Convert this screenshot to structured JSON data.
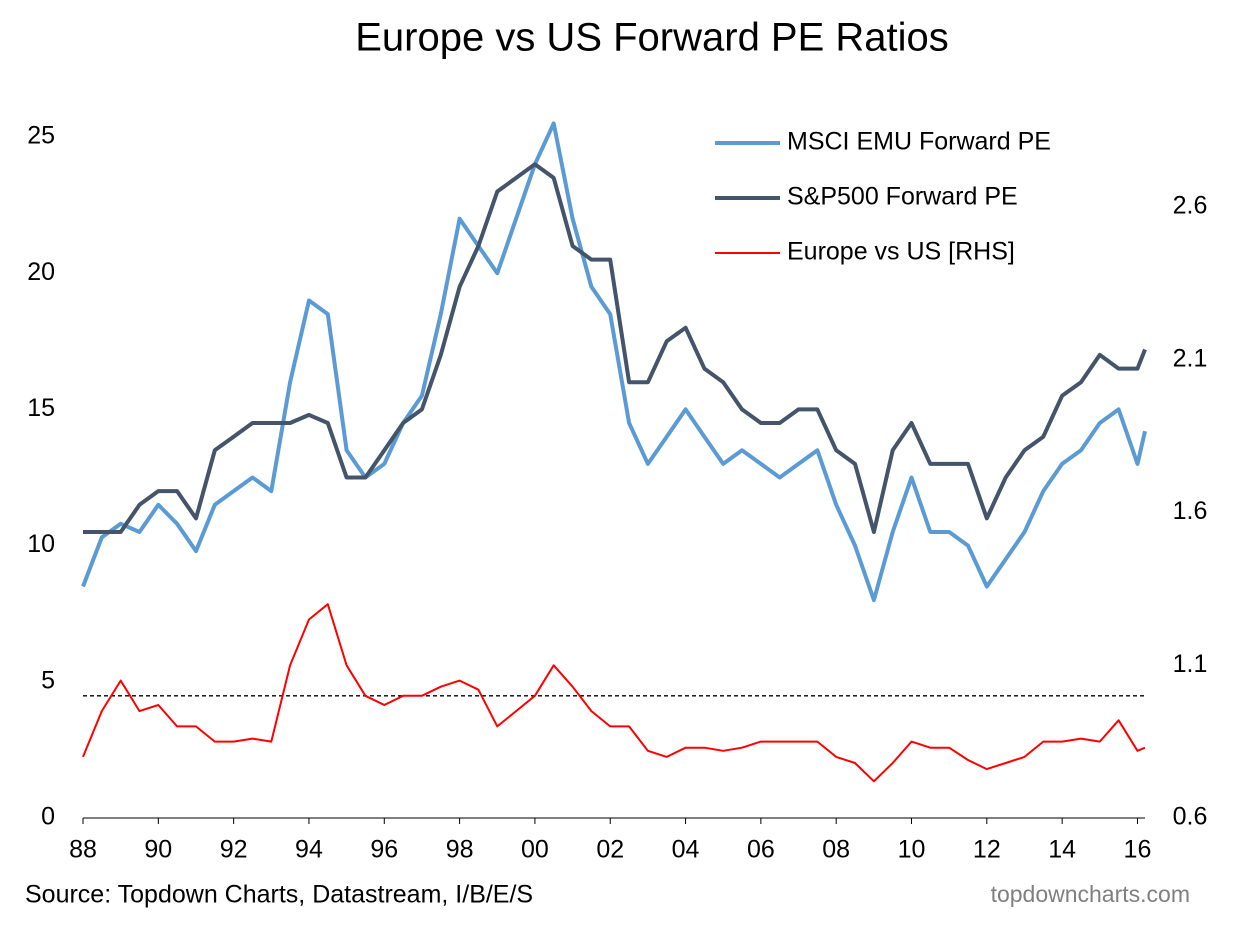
{
  "chart_data": {
    "type": "line",
    "title": "Europe vs US Forward PE Ratios",
    "source": "Source: Topdown Charts, Datastream, I/B/E/S",
    "watermark": "topdowncharts.com",
    "x": [
      1988,
      1988.5,
      1989,
      1989.5,
      1990,
      1990.5,
      1991,
      1991.5,
      1992,
      1992.5,
      1993,
      1993.5,
      1994,
      1994.5,
      1995,
      1995.5,
      1996,
      1996.5,
      1997,
      1997.5,
      1998,
      1998.5,
      1999,
      1999.5,
      2000,
      2000.5,
      2001,
      2001.5,
      2002,
      2002.5,
      2003,
      2003.5,
      2004,
      2004.5,
      2005,
      2005.5,
      2006,
      2006.5,
      2007,
      2007.5,
      2008,
      2008.5,
      2009,
      2009.5,
      2010,
      2010.5,
      2011,
      2011.5,
      2012,
      2012.5,
      2013,
      2013.5,
      2014,
      2014.5,
      2015,
      2015.5,
      2016,
      2016.2
    ],
    "xlim": [
      1988,
      2016.2
    ],
    "xticks": [
      {
        "value": 1988,
        "label": "88"
      },
      {
        "value": 1990,
        "label": "90"
      },
      {
        "value": 1992,
        "label": "92"
      },
      {
        "value": 1994,
        "label": "94"
      },
      {
        "value": 1996,
        "label": "96"
      },
      {
        "value": 1998,
        "label": "98"
      },
      {
        "value": 2000,
        "label": "00"
      },
      {
        "value": 2002,
        "label": "02"
      },
      {
        "value": 2004,
        "label": "04"
      },
      {
        "value": 2006,
        "label": "06"
      },
      {
        "value": 2008,
        "label": "08"
      },
      {
        "value": 2010,
        "label": "10"
      },
      {
        "value": 2012,
        "label": "12"
      },
      {
        "value": 2014,
        "label": "14"
      },
      {
        "value": 2016,
        "label": "16"
      }
    ],
    "ylim": [
      0,
      26.8
    ],
    "yticks": [
      0,
      5,
      10,
      15,
      20,
      25
    ],
    "y2lim": [
      0.6,
      2.99
    ],
    "y2ticks": [
      0.6,
      1.1,
      1.6,
      2.1,
      2.6
    ],
    "reference_line": {
      "value": 1.0,
      "axis": "y2",
      "color": "#000000"
    },
    "legend": "top-right",
    "series": [
      {
        "name": "MSCI EMU Forward PE",
        "color": "#5b9bd5",
        "axis": "y",
        "values": [
          8.5,
          10.3,
          10.8,
          10.5,
          11.5,
          10.8,
          9.8,
          11.5,
          12.0,
          12.5,
          12.0,
          16.0,
          19.0,
          18.5,
          13.5,
          12.5,
          13.0,
          14.5,
          15.5,
          18.5,
          22.0,
          21.0,
          20.0,
          22.0,
          24.0,
          25.5,
          22.0,
          19.5,
          18.5,
          14.5,
          13.0,
          14.0,
          15.0,
          14.0,
          13.0,
          13.5,
          13.0,
          12.5,
          13.0,
          13.5,
          11.5,
          10.0,
          8.0,
          10.5,
          12.5,
          10.5,
          10.5,
          10.0,
          8.5,
          9.5,
          10.5,
          12.0,
          13.0,
          13.5,
          14.5,
          15.0,
          13.0,
          14.2
        ]
      },
      {
        "name": "S&P500 Forward PE",
        "color": "#44546a",
        "axis": "y",
        "values": [
          10.5,
          10.5,
          10.5,
          11.5,
          12.0,
          12.0,
          11.0,
          13.5,
          14.0,
          14.5,
          14.5,
          14.5,
          14.8,
          14.5,
          12.5,
          12.5,
          13.5,
          14.5,
          15.0,
          17.0,
          19.5,
          21.0,
          23.0,
          23.5,
          24.0,
          23.5,
          21.0,
          20.5,
          20.5,
          16.0,
          16.0,
          17.5,
          18.0,
          16.5,
          16.0,
          15.0,
          14.5,
          14.5,
          15.0,
          15.0,
          13.5,
          13.0,
          10.5,
          13.5,
          14.5,
          13.0,
          13.0,
          13.0,
          11.0,
          12.5,
          13.5,
          14.0,
          15.5,
          16.0,
          17.0,
          16.5,
          16.5,
          17.2
        ]
      },
      {
        "name": "Europe vs US [RHS]",
        "color": "#ff0000",
        "axis": "y2",
        "values": [
          0.8,
          0.95,
          1.05,
          0.95,
          0.97,
          0.9,
          0.9,
          0.85,
          0.85,
          0.86,
          0.85,
          1.1,
          1.25,
          1.3,
          1.1,
          1.0,
          0.97,
          1.0,
          1.0,
          1.03,
          1.05,
          1.02,
          0.9,
          0.95,
          1.0,
          1.1,
          1.03,
          0.95,
          0.9,
          0.9,
          0.82,
          0.8,
          0.83,
          0.83,
          0.82,
          0.83,
          0.85,
          0.85,
          0.85,
          0.85,
          0.8,
          0.78,
          0.72,
          0.78,
          0.85,
          0.83,
          0.83,
          0.79,
          0.76,
          0.78,
          0.8,
          0.85,
          0.85,
          0.86,
          0.85,
          0.92,
          0.82,
          0.83
        ]
      }
    ]
  }
}
